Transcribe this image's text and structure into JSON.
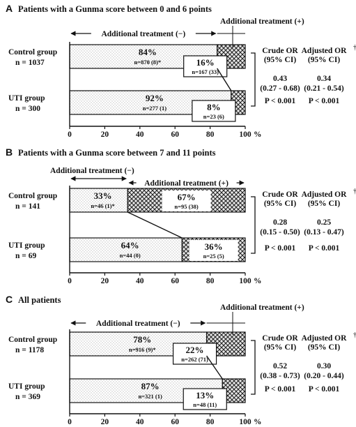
{
  "figure": {
    "x_unit": "%",
    "or_headers": {
      "crude": [
        "Crude OR",
        "(95% CI)"
      ],
      "adjusted": [
        "Adjusted OR",
        "(95% CI)"
      ],
      "dagger": "†"
    },
    "group_labels": {
      "control": "Control group",
      "uti": "UTI group"
    },
    "additional_minus": "Additional treatment (−)",
    "additional_plus": "Additional treatment (+)"
  },
  "chart_data": [
    {
      "type": "bar",
      "orientation": "horizontal",
      "stacked": true,
      "letter": "A",
      "title": "Patients with a Gunma score between 0 and 6 points",
      "xlim": [
        0,
        100
      ],
      "xticks": [
        "0",
        "20",
        "40",
        "60",
        "80",
        "100"
      ],
      "categories": [
        "Control group",
        "UTI group"
      ],
      "n_labels": [
        "n = 1037",
        "n = 300"
      ],
      "series": [
        {
          "name": "Additional treatment (−)",
          "values": [
            84,
            92
          ],
          "pct_labels": [
            "84%",
            "92%"
          ],
          "count_labels": [
            "n=870 (8)*",
            "n=277 (1)"
          ]
        },
        {
          "name": "Additional treatment (+)",
          "values": [
            16,
            8
          ],
          "pct_labels": [
            "16%",
            "8%"
          ],
          "count_labels": [
            "n=167 (33)",
            "n=23 (6)"
          ]
        }
      ],
      "crude_or": {
        "value": "0.43",
        "ci": "(0.27 - 0.68)",
        "p": "P < 0.001"
      },
      "adjusted_or": {
        "value": "0.34",
        "ci": "(0.21 - 0.54)",
        "p": "P < 0.001"
      }
    },
    {
      "type": "bar",
      "orientation": "horizontal",
      "stacked": true,
      "letter": "B",
      "title": "Patients with a Gunma score between 7 and 11 points",
      "xlim": [
        0,
        100
      ],
      "xticks": [
        "0",
        "20",
        "40",
        "60",
        "80",
        "100"
      ],
      "categories": [
        "Control group",
        "UTI group"
      ],
      "n_labels": [
        "n = 141",
        "n = 69"
      ],
      "series": [
        {
          "name": "Additional treatment (−)",
          "values": [
            33,
            64
          ],
          "pct_labels": [
            "33%",
            "64%"
          ],
          "count_labels": [
            "n=46 (1)*",
            "n=44 (0)"
          ]
        },
        {
          "name": "Additional treatment (+)",
          "values": [
            67,
            36
          ],
          "pct_labels": [
            "67%",
            "36%"
          ],
          "count_labels": [
            "n=95 (38)",
            "n=25 (5)"
          ]
        }
      ],
      "crude_or": {
        "value": "0.28",
        "ci": "(0.15 - 0.50)",
        "p": "P < 0.001"
      },
      "adjusted_or": {
        "value": "0.25",
        "ci": "(0.13 - 0.47)",
        "p": "P < 0.001"
      }
    },
    {
      "type": "bar",
      "orientation": "horizontal",
      "stacked": true,
      "letter": "C",
      "title": "All patients",
      "xlim": [
        0,
        100
      ],
      "xticks": [
        "0",
        "20",
        "40",
        "60",
        "80",
        "100"
      ],
      "categories": [
        "Control group",
        "UTI group"
      ],
      "n_labels": [
        "n = 1178",
        "n = 369"
      ],
      "series": [
        {
          "name": "Additional treatment (−)",
          "values": [
            78,
            87
          ],
          "pct_labels": [
            "78%",
            "87%"
          ],
          "count_labels": [
            "n=916 (9)*",
            "n=321 (1)"
          ]
        },
        {
          "name": "Additional treatment (+)",
          "values": [
            22,
            13
          ],
          "pct_labels": [
            "22%",
            "13%"
          ],
          "count_labels": [
            "n=262 (71)",
            "n=48 (11)"
          ]
        }
      ],
      "crude_or": {
        "value": "0.52",
        "ci": "(0.38 - 0.73)",
        "p": "P < 0.001"
      },
      "adjusted_or": {
        "value": "0.30",
        "ci": "(0.20 - 0.44)",
        "p": "P < 0.001"
      }
    }
  ]
}
